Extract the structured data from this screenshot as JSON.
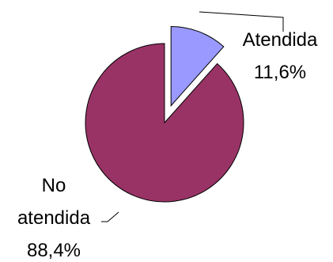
{
  "chart_data": {
    "type": "pie",
    "categories": [
      "Atendida",
      "No atendida"
    ],
    "values": [
      11.6,
      88.4
    ],
    "value_labels": [
      "11,6%",
      "88,4%"
    ],
    "colors": [
      "#9999ff",
      "#993366"
    ],
    "exploded": [
      "Atendida"
    ],
    "data_labels": [
      {
        "name_lines": [
          "Atendida"
        ],
        "value": "11,6%"
      },
      {
        "name_lines": [
          "No",
          "atendida"
        ],
        "value": "88,4%"
      }
    ]
  }
}
